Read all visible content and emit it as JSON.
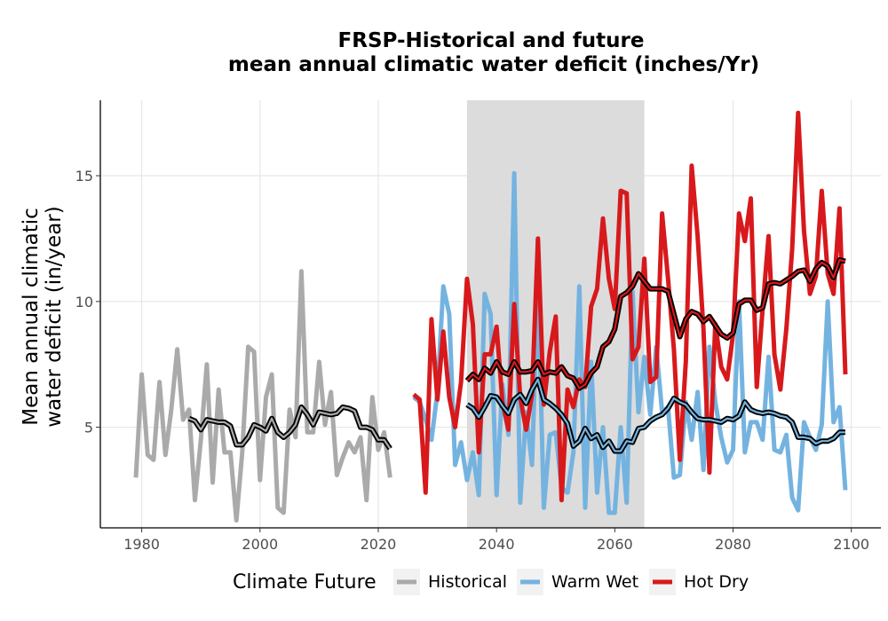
{
  "chart_data": {
    "type": "line",
    "title": [
      "FRSP-Historical and future",
      "mean annual climatic water deficit (inches/Yr)"
    ],
    "xlabel": "",
    "ylabel": [
      "Mean annual climatic",
      "water deficit (in/year)"
    ],
    "xlim": [
      1973,
      2105
    ],
    "ylim": [
      1,
      18
    ],
    "xticks": [
      1980,
      2000,
      2020,
      2040,
      2060,
      2080,
      2100
    ],
    "yticks": [
      5,
      10,
      15
    ],
    "grid": true,
    "shaded_period": [
      2035,
      2065
    ],
    "legend": {
      "title": "Climate Future",
      "position": "bottom"
    },
    "series": [
      {
        "name": "Historical",
        "color": "#aaaaaa",
        "x": [
          1979,
          1980,
          1981,
          1982,
          1983,
          1984,
          1985,
          1986,
          1987,
          1988,
          1989,
          1990,
          1991,
          1992,
          1993,
          1994,
          1995,
          1996,
          1997,
          1998,
          1999,
          2000,
          2001,
          2002,
          2003,
          2004,
          2005,
          2006,
          2007,
          2008,
          2009,
          2010,
          2011,
          2012,
          2013,
          2014,
          2015,
          2016,
          2017,
          2018,
          2019,
          2020,
          2021,
          2022
        ],
        "values": [
          3.0,
          7.1,
          3.9,
          3.7,
          6.8,
          3.9,
          5.7,
          8.1,
          5.3,
          5.7,
          2.1,
          4.5,
          7.5,
          2.8,
          6.5,
          4.0,
          4.0,
          1.3,
          4.0,
          8.2,
          8.0,
          2.9,
          6.2,
          7.1,
          1.8,
          1.6,
          5.7,
          4.6,
          11.2,
          4.8,
          4.8,
          7.6,
          5.1,
          6.4,
          3.1,
          3.8,
          4.4,
          4.0,
          4.6,
          2.1,
          6.2,
          4.1,
          4.8,
          3.0
        ],
        "smoothed": {
          "x": [
            1988,
            1989,
            1990,
            1991,
            1992,
            1993,
            1994,
            1995,
            1996,
            1997,
            1998,
            1999,
            2000,
            2001,
            2002,
            2003,
            2004,
            2005,
            2006,
            2007,
            2008,
            2009,
            2010,
            2011,
            2012,
            2013,
            2014,
            2015,
            2016,
            2017,
            2018,
            2019,
            2020,
            2021,
            2022
          ],
          "values": [
            5.35,
            5.25,
            4.9,
            5.3,
            5.25,
            5.2,
            5.2,
            5.05,
            4.3,
            4.3,
            4.6,
            5.1,
            5.0,
            4.85,
            5.35,
            4.8,
            4.6,
            4.8,
            5.1,
            5.8,
            5.5,
            5.1,
            5.6,
            5.55,
            5.5,
            5.55,
            5.8,
            5.75,
            5.65,
            5.0,
            5.0,
            4.9,
            4.5,
            4.5,
            4.15
          ]
        }
      },
      {
        "name": "Warm Wet",
        "color": "#74b3e0",
        "x": [
          2026,
          2027,
          2028,
          2029,
          2030,
          2031,
          2032,
          2033,
          2034,
          2035,
          2036,
          2037,
          2038,
          2039,
          2040,
          2041,
          2042,
          2043,
          2044,
          2045,
          2046,
          2047,
          2048,
          2049,
          2050,
          2051,
          2052,
          2053,
          2054,
          2055,
          2056,
          2057,
          2058,
          2059,
          2060,
          2061,
          2062,
          2063,
          2064,
          2065,
          2066,
          2067,
          2068,
          2069,
          2070,
          2071,
          2072,
          2073,
          2074,
          2075,
          2076,
          2077,
          2078,
          2079,
          2080,
          2081,
          2082,
          2083,
          2084,
          2085,
          2086,
          2087,
          2088,
          2089,
          2090,
          2091,
          2092,
          2093,
          2094,
          2095,
          2096,
          2097,
          2098,
          2099
        ],
        "values": [
          6.2,
          6.0,
          5.3,
          4.5,
          6.4,
          10.6,
          9.5,
          3.5,
          4.4,
          2.9,
          4.0,
          2.3,
          10.3,
          9.5,
          2.3,
          6.7,
          4.7,
          15.1,
          2.0,
          5.6,
          3.5,
          10.8,
          1.8,
          4.7,
          4.8,
          2.6,
          2.4,
          4.0,
          10.6,
          1.8,
          7.6,
          2.4,
          5.0,
          1.6,
          1.6,
          5.0,
          2.0,
          10.4,
          5.6,
          7.8,
          5.5,
          8.2,
          5.6,
          5.8,
          3.0,
          3.1,
          6.0,
          4.5,
          6.4,
          3.3,
          8.2,
          6.0,
          4.6,
          3.6,
          4.1,
          10.0,
          4.0,
          5.2,
          5.2,
          4.5,
          7.8,
          4.1,
          4.0,
          4.7,
          2.2,
          1.7,
          5.2,
          4.6,
          4.1,
          5.1,
          10.0,
          5.2,
          5.8,
          2.5
        ],
        "smoothed": {
          "x": [
            2035,
            2036,
            2037,
            2038,
            2039,
            2040,
            2041,
            2042,
            2043,
            2044,
            2045,
            2046,
            2047,
            2048,
            2049,
            2050,
            2051,
            2052,
            2053,
            2054,
            2055,
            2056,
            2057,
            2058,
            2059,
            2060,
            2061,
            2062,
            2063,
            2064,
            2065,
            2066,
            2067,
            2068,
            2069,
            2070,
            2071,
            2072,
            2073,
            2074,
            2075,
            2076,
            2077,
            2078,
            2079,
            2080,
            2081,
            2082,
            2083,
            2084,
            2085,
            2086,
            2087,
            2088,
            2089,
            2090,
            2091,
            2092,
            2093,
            2094,
            2095,
            2096,
            2097,
            2098,
            2099
          ],
          "values": [
            5.9,
            5.75,
            5.4,
            5.8,
            6.25,
            6.2,
            5.85,
            5.55,
            6.1,
            6.3,
            5.95,
            6.5,
            6.9,
            6.1,
            5.95,
            5.75,
            5.5,
            5.15,
            4.25,
            4.45,
            4.95,
            4.55,
            4.7,
            4.2,
            4.45,
            4.05,
            4.05,
            4.45,
            4.4,
            4.95,
            5.0,
            5.25,
            5.4,
            5.5,
            5.75,
            6.15,
            6.0,
            5.9,
            5.6,
            5.35,
            5.3,
            5.3,
            5.25,
            5.2,
            5.35,
            5.3,
            5.45,
            6.0,
            5.7,
            5.6,
            5.55,
            5.6,
            5.55,
            5.45,
            5.4,
            5.2,
            4.6,
            4.6,
            4.55,
            4.35,
            4.45,
            4.45,
            4.55,
            4.8,
            4.8
          ]
        }
      },
      {
        "name": "Hot Dry",
        "color": "#d7191c",
        "x": [
          2026,
          2027,
          2028,
          2029,
          2030,
          2031,
          2032,
          2033,
          2034,
          2035,
          2036,
          2037,
          2038,
          2039,
          2040,
          2041,
          2042,
          2043,
          2044,
          2045,
          2046,
          2047,
          2048,
          2049,
          2050,
          2051,
          2052,
          2053,
          2054,
          2055,
          2056,
          2057,
          2058,
          2059,
          2060,
          2061,
          2062,
          2063,
          2064,
          2065,
          2066,
          2067,
          2068,
          2069,
          2070,
          2071,
          2072,
          2073,
          2074,
          2075,
          2076,
          2077,
          2078,
          2079,
          2080,
          2081,
          2082,
          2083,
          2084,
          2085,
          2086,
          2087,
          2088,
          2089,
          2090,
          2091,
          2092,
          2093,
          2094,
          2095,
          2096,
          2097,
          2098,
          2099
        ],
        "values": [
          6.3,
          6.1,
          2.4,
          9.3,
          6.1,
          8.8,
          6.2,
          5.0,
          6.8,
          10.9,
          9.1,
          4.0,
          7.9,
          7.9,
          9.0,
          6.0,
          4.9,
          9.9,
          6.2,
          4.9,
          6.3,
          12.5,
          5.9,
          8.0,
          9.4,
          2.1,
          6.5,
          5.8,
          6.9,
          6.6,
          9.8,
          10.5,
          13.3,
          10.9,
          9.7,
          14.4,
          14.3,
          7.7,
          8.2,
          11.7,
          6.8,
          7.0,
          13.5,
          10.9,
          8.1,
          3.7,
          7.6,
          15.4,
          12.6,
          8.9,
          3.2,
          9.1,
          7.4,
          6.9,
          8.7,
          13.5,
          12.4,
          14.1,
          6.6,
          9.7,
          12.6,
          7.9,
          6.5,
          8.9,
          12.1,
          17.5,
          12.8,
          10.3,
          11.0,
          14.4,
          11.1,
          10.3,
          13.7,
          7.1
        ],
        "smoothed": {
          "x": [
            2035,
            2036,
            2037,
            2038,
            2039,
            2040,
            2041,
            2042,
            2043,
            2044,
            2045,
            2046,
            2047,
            2048,
            2049,
            2050,
            2051,
            2052,
            2053,
            2054,
            2055,
            2056,
            2057,
            2058,
            2059,
            2060,
            2061,
            2062,
            2063,
            2064,
            2065,
            2066,
            2067,
            2068,
            2069,
            2070,
            2071,
            2072,
            2073,
            2074,
            2075,
            2076,
            2077,
            2078,
            2079,
            2080,
            2081,
            2082,
            2083,
            2084,
            2085,
            2086,
            2087,
            2088,
            2089,
            2090,
            2091,
            2092,
            2093,
            2094,
            2095,
            2096,
            2097,
            2098,
            2099
          ],
          "values": [
            6.85,
            7.1,
            6.9,
            7.35,
            7.15,
            7.6,
            7.2,
            7.1,
            7.6,
            7.2,
            7.2,
            7.25,
            7.6,
            7.1,
            7.2,
            7.15,
            7.4,
            7.05,
            6.95,
            6.55,
            6.7,
            7.15,
            7.4,
            8.2,
            8.4,
            8.9,
            10.2,
            10.35,
            10.6,
            11.1,
            10.8,
            10.5,
            10.5,
            10.5,
            10.4,
            9.5,
            8.6,
            9.3,
            9.6,
            9.5,
            9.2,
            9.4,
            9.05,
            8.7,
            8.55,
            8.75,
            9.9,
            10.05,
            10.05,
            9.65,
            9.75,
            10.7,
            10.75,
            10.7,
            10.85,
            11.0,
            11.2,
            11.25,
            10.8,
            11.3,
            11.55,
            11.4,
            10.95,
            11.65,
            11.6
          ]
        }
      }
    ]
  }
}
